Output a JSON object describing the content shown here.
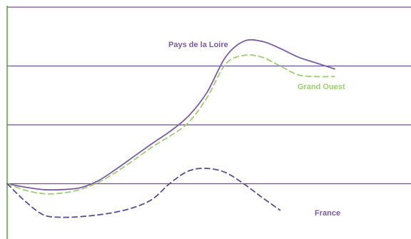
{
  "chart_data": {
    "type": "line",
    "title": "",
    "xlabel": "",
    "ylabel": "",
    "grid": true,
    "legend": "inline labels",
    "x": [
      0,
      10,
      20,
      30,
      40,
      50,
      60,
      70,
      80,
      90,
      100,
      110,
      120,
      130,
      140,
      150,
      160,
      170,
      180,
      190,
      200
    ],
    "ylim": [
      -1.0,
      3.0
    ],
    "gridlines_y": [
      0,
      1,
      2,
      3
    ],
    "series": [
      {
        "name": "Pays de la Loire",
        "color": "#7a5aa6",
        "dash": "solid",
        "values": [
          0.0,
          -0.06,
          -0.1,
          -0.1,
          -0.07,
          0.05,
          0.25,
          0.47,
          0.69,
          0.9,
          1.16,
          1.56,
          2.15,
          2.42,
          2.42,
          2.3,
          2.15,
          2.05,
          1.95,
          null,
          null
        ]
      },
      {
        "name": "Grand Ouest",
        "color": "#9bcf6f",
        "dash": "dashed",
        "values": [
          0.0,
          -0.11,
          -0.17,
          -0.16,
          -0.1,
          0.02,
          0.2,
          0.41,
          0.63,
          0.82,
          1.05,
          1.47,
          2.03,
          2.18,
          2.15,
          2.0,
          1.85,
          1.82,
          1.82,
          null,
          null
        ]
      },
      {
        "name": "France",
        "color": "#5a4a96",
        "dash": "dashed",
        "values": [
          0.0,
          -0.3,
          -0.53,
          -0.57,
          -0.56,
          -0.53,
          -0.48,
          -0.4,
          -0.26,
          0.02,
          0.22,
          0.26,
          0.19,
          0.0,
          -0.23,
          -0.45,
          null,
          null,
          null,
          null,
          null
        ]
      }
    ]
  },
  "labels": {
    "pays_de_la_loire": "Pays de la Loire",
    "grand_ouest": "Grand Ouest",
    "france": "France"
  }
}
